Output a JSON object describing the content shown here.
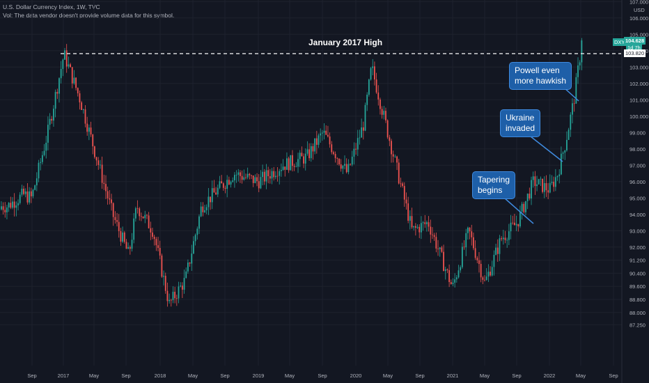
{
  "header": {
    "title": "U.S. Dollar Currency Index, 1W, TVC",
    "subtitle": "Vol: The data vendor doesn't provide volume data for this symbol."
  },
  "colors": {
    "background": "#131722",
    "grid": "#1e222d",
    "up": "#26a69a",
    "down": "#ef5350",
    "annotation_fill": "#1e5fa8",
    "annotation_border": "#3f8be0",
    "price_tag": "#26a69a"
  },
  "price_axis": {
    "currency": "USD",
    "last_symbol": "DXY",
    "last_price": "104.628",
    "countdown": "1d 7h",
    "level_price": "103.820"
  },
  "annotations": {
    "high_label": "January 2017 High",
    "tapering": "Tapering\nbegins",
    "ukraine": "Ukraine\ninvaded",
    "powell": "Powell even\nmore hawkish"
  },
  "chart_data": {
    "type": "candlestick",
    "title": "U.S. Dollar Currency Index, 1W, TVC",
    "y_ticks": [
      "107.000",
      "106.000",
      "105.000",
      "104.000",
      "103.000",
      "102.000",
      "101.000",
      "100.000",
      "99.000",
      "98.000",
      "97.000",
      "96.000",
      "95.000",
      "94.000",
      "93.000",
      "92.000",
      "91.200",
      "90.400",
      "89.600",
      "88.800",
      "88.000",
      "87.250"
    ],
    "x_ticks": [
      "Sep",
      "2017",
      "May",
      "Sep",
      "2018",
      "May",
      "Sep",
      "2019",
      "May",
      "Sep",
      "2020",
      "May",
      "Sep",
      "2021",
      "May",
      "Sep",
      "2022",
      "May",
      "Sep"
    ],
    "horizontal_level": 103.82,
    "path": [
      [
        "2016-06",
        94.5
      ],
      [
        "2016-08",
        95.2
      ],
      [
        "2016-09",
        95.0
      ],
      [
        "2016-11",
        99.0
      ],
      [
        "2017-01",
        103.8
      ],
      [
        "2017-03",
        101.0
      ],
      [
        "2017-05",
        97.5
      ],
      [
        "2017-07",
        94.0
      ],
      [
        "2017-09",
        91.5
      ],
      [
        "2017-10",
        94.5
      ],
      [
        "2017-12",
        93.0
      ],
      [
        "2018-02",
        88.5
      ],
      [
        "2018-04",
        90.0
      ],
      [
        "2018-06",
        94.5
      ],
      [
        "2018-08",
        95.5
      ],
      [
        "2018-10",
        96.5
      ],
      [
        "2019-01",
        96.0
      ],
      [
        "2019-04",
        97.0
      ],
      [
        "2019-07",
        97.5
      ],
      [
        "2019-09",
        99.0
      ],
      [
        "2019-12",
        96.5
      ],
      [
        "2020-02",
        99.5
      ],
      [
        "2020-03",
        103.0
      ],
      [
        "2020-06",
        97.0
      ],
      [
        "2020-08",
        93.0
      ],
      [
        "2020-10",
        93.5
      ],
      [
        "2021-01",
        89.5
      ],
      [
        "2021-03",
        93.0
      ],
      [
        "2021-05",
        89.8
      ],
      [
        "2021-07",
        92.5
      ],
      [
        "2021-09",
        93.5
      ],
      [
        "2021-11",
        96.0
      ],
      [
        "2022-01",
        95.5
      ],
      [
        "2022-02",
        96.5
      ],
      [
        "2022-03",
        98.5
      ],
      [
        "2022-04",
        101.0
      ],
      [
        "2022-05",
        104.6
      ]
    ],
    "last_close": 104.628
  }
}
